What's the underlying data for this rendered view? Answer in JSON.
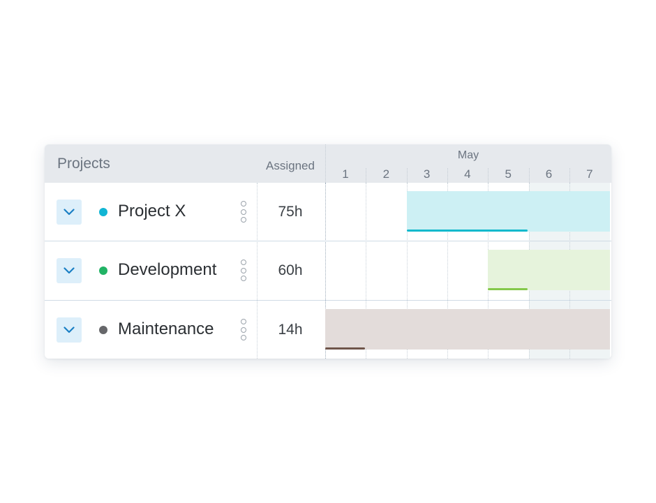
{
  "header": {
    "projects_label": "Projects",
    "assigned_label": "Assigned",
    "month_label": "May",
    "days": [
      "1",
      "2",
      "3",
      "4",
      "5",
      "6",
      "7"
    ]
  },
  "rows": [
    {
      "name": "Project X",
      "hours": "75h",
      "dot_color": "#11b5d4",
      "bar_color": "#cdf0f4",
      "line_color": "#12b9cc",
      "start_day": 3,
      "end_day": 7
    },
    {
      "name": "Development",
      "hours": "60h",
      "dot_color": "#21b365",
      "bar_color": "#e6f3dc",
      "line_color": "#84c84b",
      "start_day": 5,
      "end_day": 7
    },
    {
      "name": "Maintenance",
      "hours": "14h",
      "dot_color": "#66676a",
      "bar_color": "#e3dcda",
      "line_color": "#6e5449",
      "start_day": 1,
      "end_day": 7
    }
  ],
  "icons": {
    "expand": "chevron-down-icon",
    "menu": "vertical-dots-icon"
  },
  "weekend_days": [
    6,
    7
  ]
}
